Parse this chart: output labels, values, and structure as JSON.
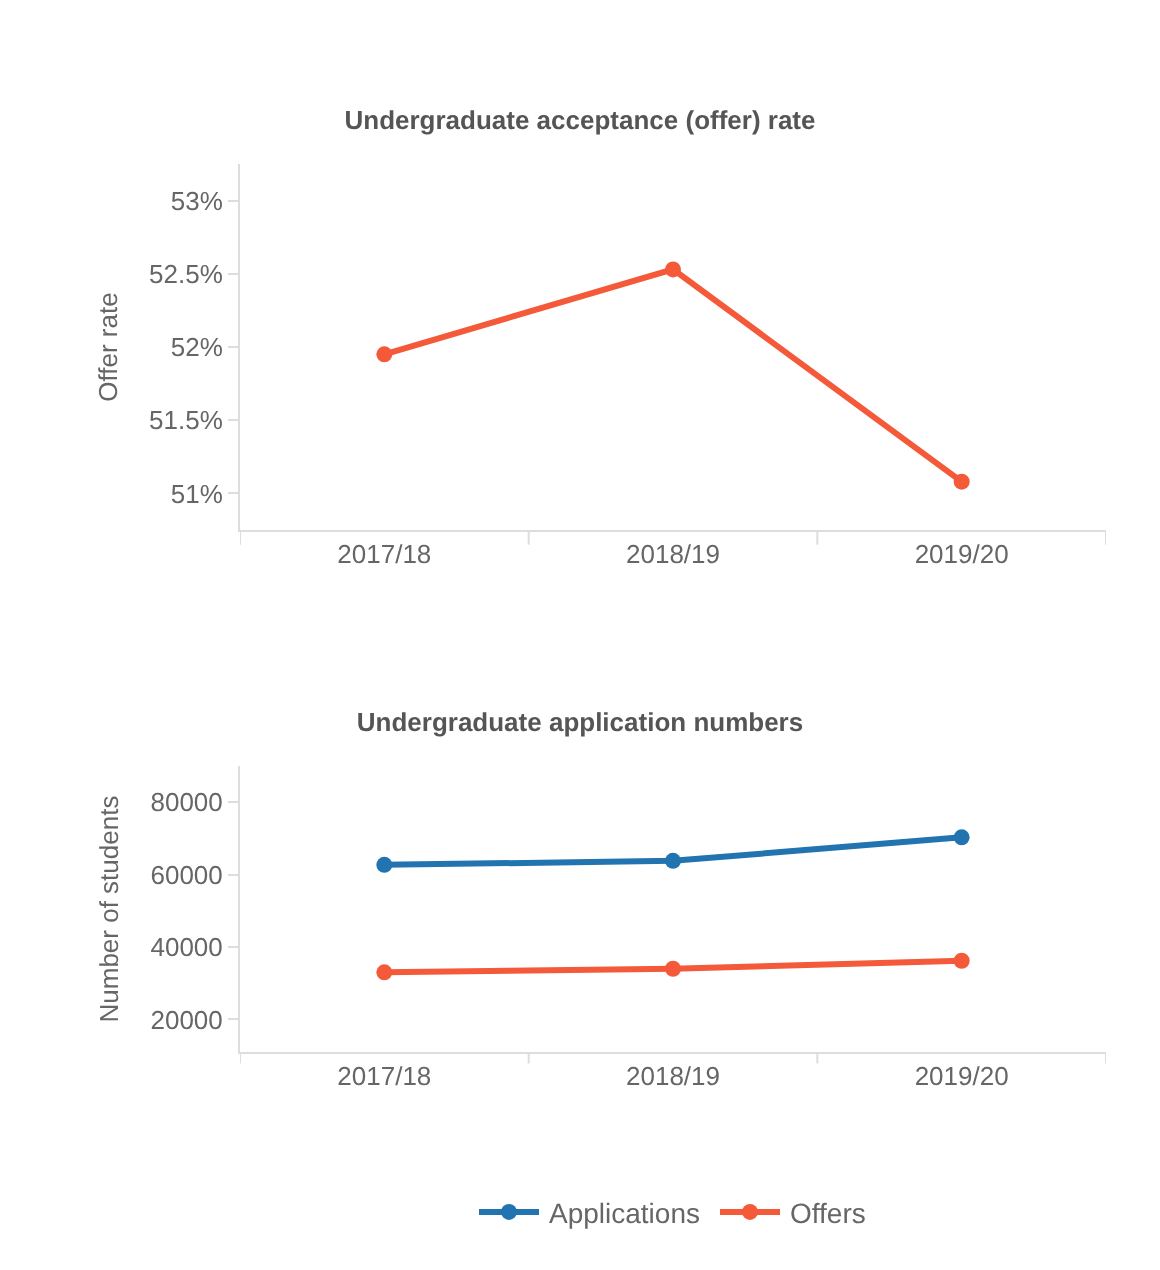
{
  "chart_data": [
    {
      "type": "line",
      "title": "Undergraduate acceptance (offer) rate",
      "ylabel": "Offer rate",
      "categories": [
        "2017/18",
        "2018/19",
        "2019/20"
      ],
      "series": [
        {
          "color": "#f4593a",
          "values": [
            51.95,
            52.53,
            51.08
          ]
        }
      ],
      "ylim": [
        50.75,
        53.25
      ],
      "yticks": [
        {
          "value": 51,
          "label": "51%"
        },
        {
          "value": 51.5,
          "label": "51.5%"
        },
        {
          "value": 52,
          "label": "52%"
        },
        {
          "value": 52.5,
          "label": "52.5%"
        },
        {
          "value": 53,
          "label": "53%"
        }
      ],
      "grid": false,
      "legend": false,
      "marker": "circle",
      "line_style": "solid"
    },
    {
      "type": "line",
      "title": "Undergraduate application numbers",
      "ylabel": "Number of students",
      "categories": [
        "2017/18",
        "2018/19",
        "2019/20"
      ],
      "series": [
        {
          "name": "Applications",
          "color": "#2174b0",
          "values": [
            62700,
            63800,
            70300
          ]
        },
        {
          "name": "Offers",
          "color": "#f4593a",
          "values": [
            33000,
            34000,
            36200
          ]
        }
      ],
      "ylim": [
        11000,
        90000
      ],
      "yticks": [
        20000,
        40000,
        60000,
        80000
      ],
      "grid": false,
      "legend": "bottom",
      "marker": "circle",
      "line_style": "solid"
    }
  ]
}
